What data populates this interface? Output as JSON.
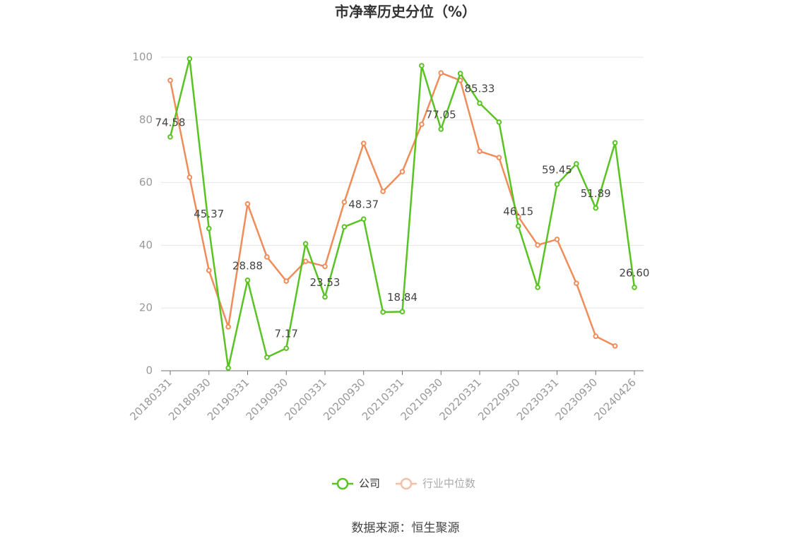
{
  "chart_data": {
    "type": "line",
    "title": "市净率历史分位（%）",
    "categories": [
      "20180331",
      null,
      "20180930",
      null,
      "20190331",
      null,
      "20190930",
      null,
      "20200331",
      null,
      "20200930",
      null,
      "20210331",
      null,
      "20210930",
      null,
      "20220331",
      null,
      "20220930",
      null,
      "20230331",
      null,
      "20230930",
      null,
      "20240426"
    ],
    "series": [
      {
        "name": "公司",
        "color": "#58c322",
        "values": [
          74.58,
          99.5,
          45.37,
          0.9,
          28.88,
          4.3,
          7.17,
          40.5,
          23.53,
          45.9,
          48.37,
          18.7,
          18.84,
          97.3,
          77.05,
          94.8,
          85.33,
          79.3,
          46.15,
          26.6,
          59.45,
          66.0,
          51.89,
          72.7,
          26.6
        ],
        "value_labels": [
          "74.58",
          null,
          "45.37",
          null,
          "28.88",
          null,
          "7.17",
          null,
          "23.53",
          null,
          "48.37",
          null,
          "18.84",
          null,
          "77.05",
          null,
          "85.33",
          null,
          "46.15",
          null,
          "59.45",
          null,
          "51.89",
          null,
          "26.60"
        ]
      },
      {
        "name": "行业中位数",
        "color": "#f08c5a",
        "values": [
          92.6,
          61.7,
          32.0,
          14.0,
          53.2,
          36.3,
          28.6,
          34.9,
          33.3,
          53.8,
          72.5,
          57.2,
          63.5,
          78.6,
          95.0,
          92.6,
          70.0,
          68.0,
          49.1,
          40.1,
          41.9,
          27.9,
          11.0,
          7.9,
          null
        ]
      }
    ],
    "ylim": [
      0,
      100
    ],
    "yticks": [
      0,
      20,
      40,
      60,
      80,
      100
    ],
    "grid": true,
    "source": "数据来源：恒生聚源"
  }
}
